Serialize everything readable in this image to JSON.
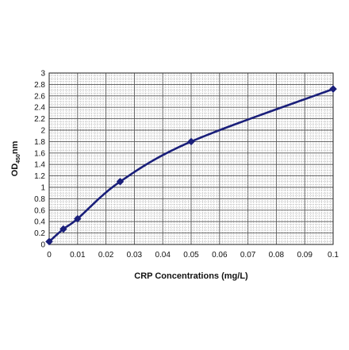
{
  "chart_data": {
    "type": "line",
    "title": "",
    "xlabel": "CRP Concentrations (mg/L)",
    "ylabel": {
      "prefix": "OD",
      "subscript": "450",
      "suffix": "nm"
    },
    "xlim": [
      0,
      0.1
    ],
    "ylim": [
      0,
      3
    ],
    "x_ticks": [
      "0",
      "0.01",
      "0.02",
      "0.03",
      "0.04",
      "0.05",
      "0.06",
      "0.07",
      "0.08",
      "0.09",
      "0.1"
    ],
    "y_ticks": [
      "0",
      "0.2",
      "0.4",
      "0.6",
      "0.8",
      "1",
      "1.2",
      "1.4",
      "1.6",
      "1.8",
      "2",
      "2.2",
      "2.4",
      "2.6",
      "2.8",
      "3"
    ],
    "grid": true,
    "series": [
      {
        "color": "#1a1f7a",
        "marker": "diamond",
        "x": [
          0,
          0.005,
          0.01,
          0.025,
          0.05,
          0.1
        ],
        "y": [
          0.05,
          0.27,
          0.45,
          1.1,
          1.8,
          2.72
        ]
      }
    ]
  }
}
